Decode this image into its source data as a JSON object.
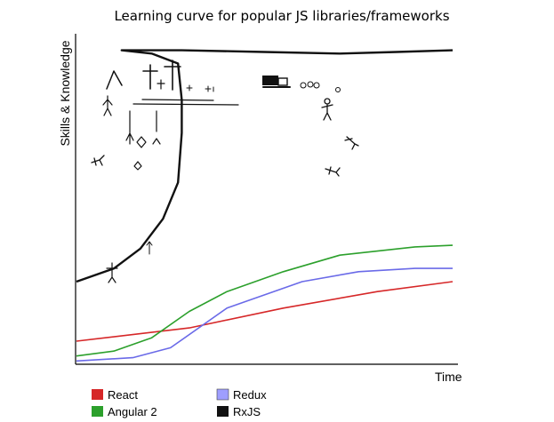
{
  "chart_data": {
    "type": "line",
    "title": "Learning curve for popular JS libraries/frameworks",
    "xlabel": "Time",
    "ylabel": "Skills & Knowledge",
    "xlim": [
      0,
      100
    ],
    "ylim": [
      0,
      100
    ],
    "grid": false,
    "legend_position": "bottom-left",
    "series": [
      {
        "name": "React",
        "color": "#d62728",
        "x": [
          0,
          30,
          55,
          80,
          100
        ],
        "y": [
          7,
          11,
          17,
          22,
          25
        ]
      },
      {
        "name": "Redux",
        "color": "#6a6ae8",
        "x": [
          0,
          15,
          25,
          40,
          60,
          75,
          90,
          100
        ],
        "y": [
          1,
          2,
          5,
          17,
          25,
          28,
          29,
          29
        ]
      },
      {
        "name": "Angular 2",
        "color": "#2ca02c",
        "x": [
          0,
          10,
          20,
          30,
          40,
          55,
          70,
          90,
          100
        ],
        "y": [
          2.5,
          4,
          8,
          16,
          22,
          28,
          33,
          35.5,
          36
        ]
      },
      {
        "name": "RxJS",
        "color": "#111111",
        "x": [
          0,
          10,
          17,
          23,
          27,
          28,
          28,
          27,
          20,
          12,
          28,
          50,
          70,
          85,
          100
        ],
        "y": [
          25,
          29,
          35,
          44,
          55,
          70,
          80,
          91,
          94,
          95,
          95,
          94.5,
          94,
          94.5,
          95
        ]
      }
    ]
  }
}
